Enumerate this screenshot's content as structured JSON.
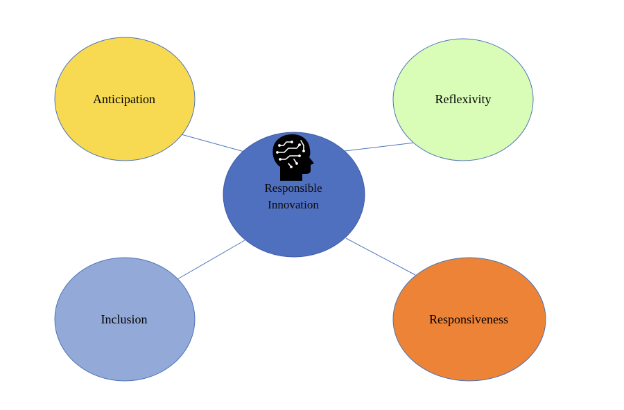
{
  "center": {
    "label_line1": "Responsible",
    "label_line2": "Innovation",
    "color": "#4f6fbf",
    "icon": "head-circuit-icon"
  },
  "nodes": {
    "anticipation": {
      "label": "Anticipation",
      "color": "#f8da52"
    },
    "reflexivity": {
      "label": "Reflexivity",
      "color": "#d9fdb7"
    },
    "inclusion": {
      "label": "Inclusion",
      "color": "#93a9d8"
    },
    "responsiveness": {
      "label": "Responsiveness",
      "color": "#ec8337"
    }
  },
  "connector_color": "#4e74b8"
}
